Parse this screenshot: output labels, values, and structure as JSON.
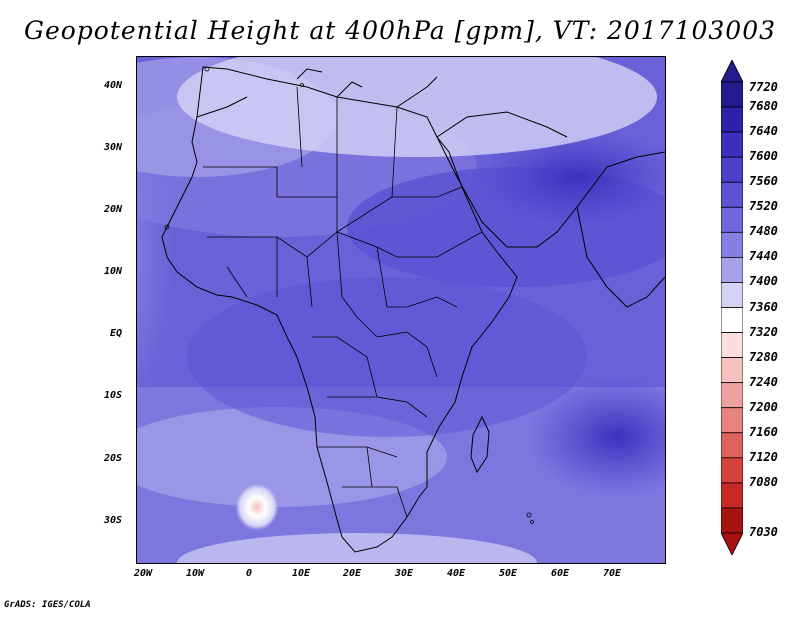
{
  "title": "Geopotential Height at 400hPa [gpm], VT: 2017103003",
  "credit": "GrADS: IGES/COLA",
  "lat_labels": [
    "40N",
    "30N",
    "20N",
    "10N",
    "EQ",
    "10S",
    "20S",
    "30S"
  ],
  "lon_labels": [
    "20W",
    "10W",
    "0",
    "10E",
    "20E",
    "30E",
    "40E",
    "50E",
    "60E",
    "70E"
  ],
  "colorbar": {
    "labels": [
      "7720",
      "7680",
      "7640",
      "7600",
      "7560",
      "7520",
      "7480",
      "7440",
      "7400",
      "7360",
      "7320",
      "7280",
      "7240",
      "7200",
      "7160",
      "7120",
      "7080",
      "7030"
    ],
    "colors": [
      "#231a8c",
      "#2b22a8",
      "#3a30bd",
      "#4b40c9",
      "#5c52d4",
      "#6e66dc",
      "#8680e2",
      "#a6a2ea",
      "#d4d3f6",
      "#ffffff",
      "#fbdedd",
      "#f6c1bf",
      "#efa3a0",
      "#e8837f",
      "#e0625d",
      "#d6433d",
      "#c82823",
      "#a5120f"
    ]
  }
}
